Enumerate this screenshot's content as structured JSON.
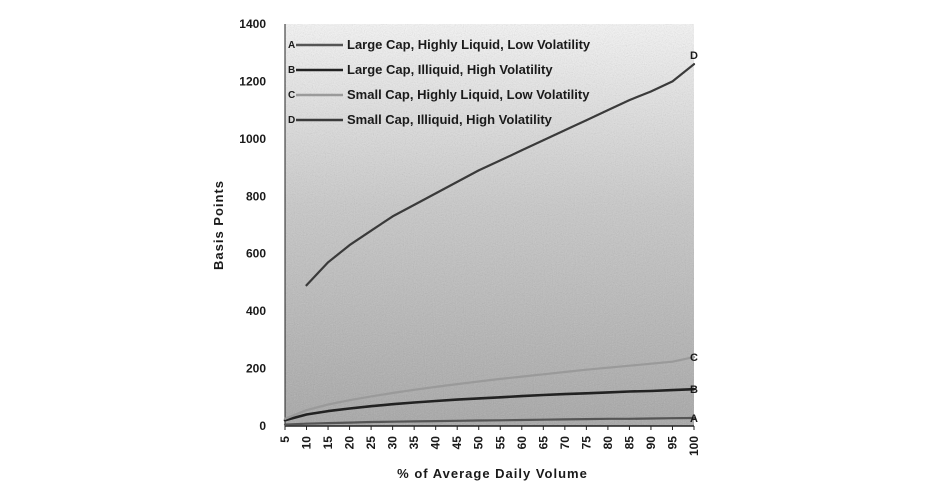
{
  "chart_data": {
    "type": "line",
    "title": "",
    "xlabel": "% of Average Daily Volume",
    "ylabel": "Basis Points",
    "x": [
      5,
      10,
      15,
      20,
      25,
      30,
      35,
      40,
      45,
      50,
      55,
      60,
      65,
      70,
      75,
      80,
      85,
      90,
      95,
      100
    ],
    "x_tick_labels": [
      "5",
      "10",
      "15",
      "20",
      "25",
      "30",
      "35",
      "40",
      "45",
      "50",
      "55",
      "60",
      "65",
      "70",
      "75",
      "80",
      "85",
      "90",
      "95",
      "100"
    ],
    "xlim": [
      5,
      100
    ],
    "ylim": [
      0,
      1400
    ],
    "y_ticks": [
      0,
      200,
      400,
      600,
      800,
      1000,
      1200,
      1400
    ],
    "y_tick_labels": [
      "0",
      "200",
      "400",
      "600",
      "800",
      "1000",
      "1200",
      "1400"
    ],
    "grid": false,
    "legend_position": "top-left",
    "series": [
      {
        "name": "Large Cap, Highly Liquid, Low Volatility",
        "letter": "A",
        "color": "#555555",
        "values": [
          5,
          8,
          10,
          12,
          14,
          15,
          16,
          17,
          18,
          19,
          20,
          21,
          22,
          23,
          24,
          25,
          25,
          26,
          27,
          28
        ]
      },
      {
        "name": "Large Cap, Illiquid, High Volatility",
        "letter": "B",
        "color": "#222222",
        "values": [
          20,
          40,
          52,
          61,
          69,
          76,
          82,
          87,
          92,
          96,
          100,
          104,
          108,
          111,
          114,
          117,
          120,
          122,
          125,
          128
        ]
      },
      {
        "name": "Small Cap, Highly Liquid, Low Volatility",
        "letter": "C",
        "color": "#9a9a9a",
        "values": [
          25,
          55,
          75,
          90,
          103,
          115,
          126,
          136,
          146,
          155,
          164,
          172,
          180,
          188,
          196,
          203,
          210,
          217,
          224,
          240
        ]
      },
      {
        "name": "Small Cap, Illiquid, High Volatility",
        "letter": "D",
        "color": "#3a3a3a",
        "x": [
          10,
          15,
          20,
          25,
          30,
          35,
          40,
          45,
          50,
          55,
          60,
          65,
          70,
          75,
          80,
          85,
          90,
          95,
          100
        ],
        "values": [
          490,
          570,
          630,
          680,
          730,
          770,
          810,
          850,
          890,
          925,
          960,
          995,
          1030,
          1065,
          1100,
          1135,
          1165,
          1200,
          1260
        ]
      }
    ]
  }
}
